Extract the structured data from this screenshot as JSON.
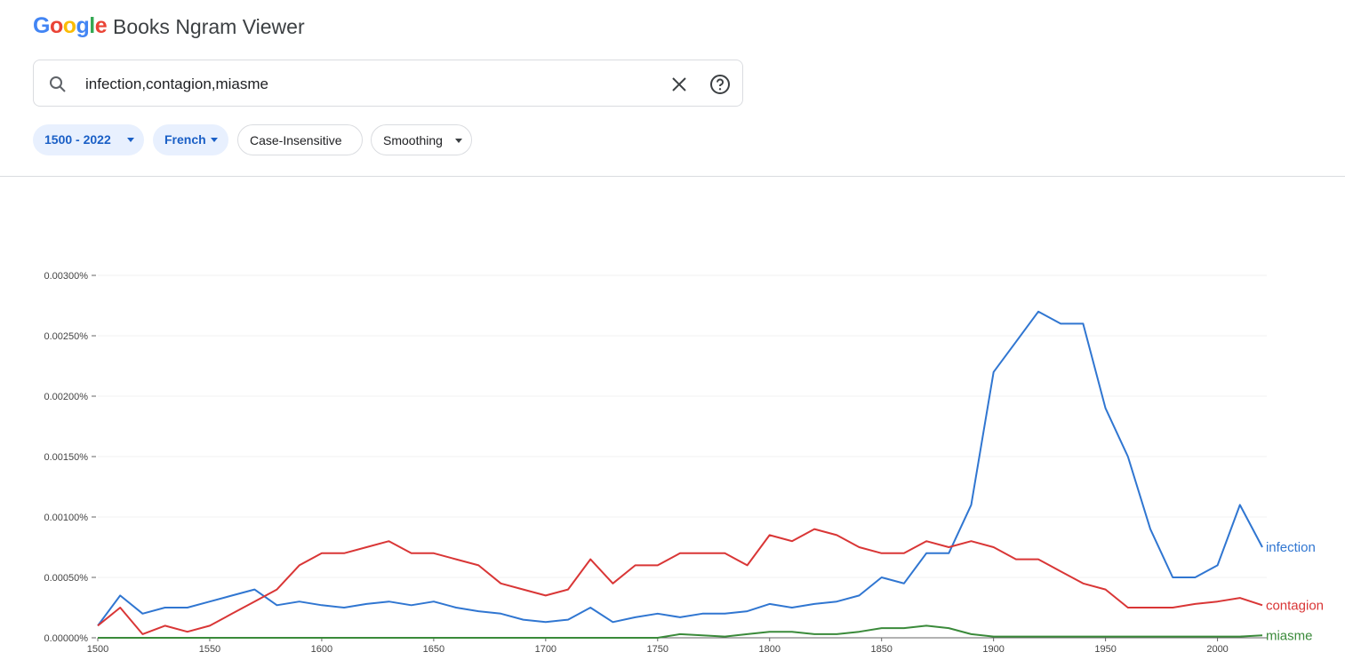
{
  "header": {
    "logo": "Google",
    "title": "Books Ngram Viewer"
  },
  "search": {
    "query": "infection,contagion,miasme"
  },
  "filters": [
    "1500 - 2022",
    "French",
    "Case-Insensitive",
    "Smoothing"
  ],
  "chart_data": {
    "type": "line",
    "x": [
      1500,
      1510,
      1520,
      1530,
      1540,
      1550,
      1560,
      1570,
      1580,
      1590,
      1600,
      1610,
      1620,
      1630,
      1640,
      1650,
      1660,
      1670,
      1680,
      1690,
      1700,
      1710,
      1720,
      1730,
      1740,
      1750,
      1760,
      1770,
      1780,
      1790,
      1800,
      1810,
      1820,
      1830,
      1840,
      1850,
      1860,
      1870,
      1880,
      1890,
      1900,
      1910,
      1920,
      1930,
      1940,
      1950,
      1960,
      1970,
      1980,
      1990,
      2000,
      2010,
      2020
    ],
    "series": [
      {
        "name": "infection",
        "color": "#3076d1",
        "values": [
          0.0001,
          0.00035,
          0.0002,
          0.00025,
          0.00025,
          0.0003,
          0.00035,
          0.0004,
          0.00027,
          0.0003,
          0.00027,
          0.00025,
          0.00028,
          0.0003,
          0.00027,
          0.0003,
          0.00025,
          0.00022,
          0.0002,
          0.00015,
          0.00013,
          0.00015,
          0.00025,
          0.00013,
          0.00017,
          0.0002,
          0.00017,
          0.0002,
          0.0002,
          0.00022,
          0.00028,
          0.00025,
          0.00028,
          0.0003,
          0.00035,
          0.0005,
          0.00045,
          0.0007,
          0.0007,
          0.0011,
          0.0022,
          0.00245,
          0.0027,
          0.0026,
          0.0026,
          0.0019,
          0.0015,
          0.0009,
          0.0005,
          0.0005,
          0.0006,
          0.0011,
          0.00075
        ]
      },
      {
        "name": "contagion",
        "color": "#d93636",
        "values": [
          0.0001,
          0.00025,
          3e-05,
          0.0001,
          5e-05,
          0.0001,
          0.0002,
          0.0003,
          0.0004,
          0.0006,
          0.0007,
          0.0007,
          0.00075,
          0.0008,
          0.0007,
          0.0007,
          0.00065,
          0.0006,
          0.00045,
          0.0004,
          0.00035,
          0.0004,
          0.00065,
          0.00045,
          0.0006,
          0.0006,
          0.0007,
          0.0007,
          0.0007,
          0.0006,
          0.00085,
          0.0008,
          0.0009,
          0.00085,
          0.00075,
          0.0007,
          0.0007,
          0.0008,
          0.00075,
          0.0008,
          0.00075,
          0.00065,
          0.00065,
          0.00055,
          0.00045,
          0.0004,
          0.00025,
          0.00025,
          0.00025,
          0.00028,
          0.0003,
          0.00033,
          0.00027
        ]
      },
      {
        "name": "miasme",
        "color": "#3a8a3a",
        "values": [
          0,
          0,
          0,
          0,
          0,
          0,
          0,
          0,
          0,
          0,
          0,
          0,
          0,
          0,
          0,
          0,
          0,
          0,
          0,
          0,
          0,
          0,
          0,
          0,
          0,
          0,
          3e-05,
          2e-05,
          1e-05,
          3e-05,
          5e-05,
          5e-05,
          3e-05,
          3e-05,
          5e-05,
          8e-05,
          8e-05,
          0.0001,
          8e-05,
          3e-05,
          1e-05,
          1e-05,
          1e-05,
          1e-05,
          1e-05,
          1e-05,
          1e-05,
          1e-05,
          1e-05,
          1e-05,
          1e-05,
          1e-05,
          2e-05
        ]
      }
    ],
    "xlim": [
      1500,
      2022
    ],
    "xticks": [
      1500,
      1550,
      1600,
      1650,
      1700,
      1750,
      1800,
      1850,
      1900,
      1950,
      2000
    ],
    "ylim": [
      0,
      0.003
    ],
    "yticks": [
      {
        "value": 0,
        "label": "0.00000%"
      },
      {
        "value": 0.0005,
        "label": "0.00050%"
      },
      {
        "value": 0.001,
        "label": "0.00100%"
      },
      {
        "value": 0.0015,
        "label": "0.00150%"
      },
      {
        "value": 0.002,
        "label": "0.00200%"
      },
      {
        "value": 0.0025,
        "label": "0.00250%"
      },
      {
        "value": 0.003,
        "label": "0.00300%"
      }
    ],
    "grid": true
  }
}
